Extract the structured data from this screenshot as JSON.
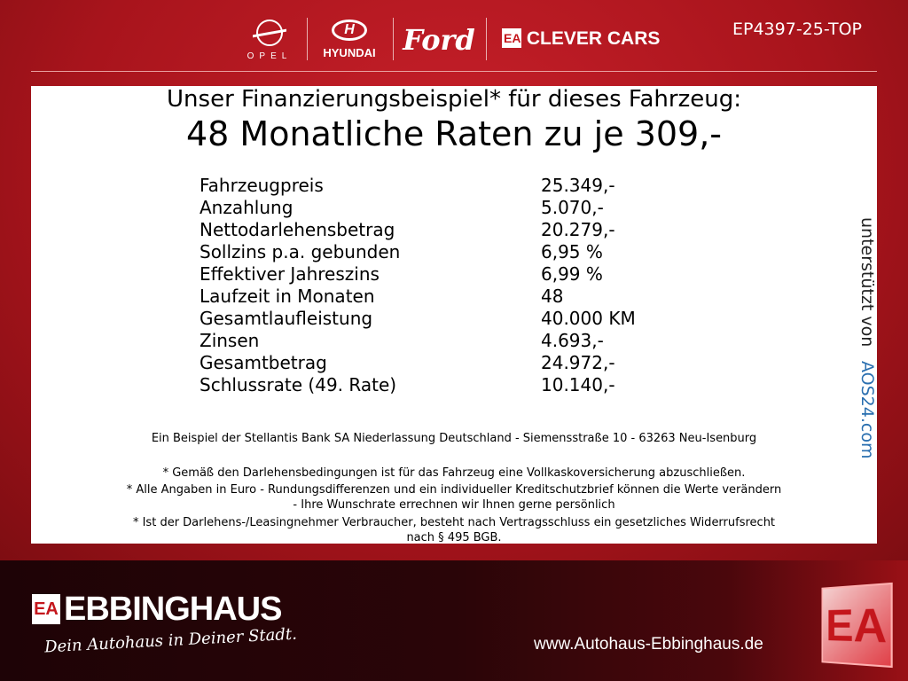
{
  "header": {
    "brands": [
      "OPEL",
      "HYUNDAI",
      "Ford",
      "CLEVER CARS"
    ],
    "reference": "EP4397-25-TOP"
  },
  "offer": {
    "title": "Unser Finanzierungsbeispiel* für dieses Fahrzeug:",
    "headline": "48 Monatliche Raten zu je 309,-",
    "rows": [
      {
        "label": "Fahrzeugpreis",
        "value": "25.349,-"
      },
      {
        "label": "Anzahlung",
        "value": "5.070,-"
      },
      {
        "label": "Nettodarlehensbetrag",
        "value": "20.279,-"
      },
      {
        "label": "Sollzins p.a. gebunden",
        "value": "6,95 %"
      },
      {
        "label": "Effektiver Jahreszins",
        "value": "6,99 %"
      },
      {
        "label": "Laufzeit in Monaten",
        "value": "48"
      },
      {
        "label": "Gesamtlaufleistung",
        "value": "40.000 KM"
      },
      {
        "label": "Zinsen",
        "value": "4.693,-"
      },
      {
        "label": "Gesamtbetrag",
        "value": "24.972,-"
      },
      {
        "label": "Schlussrate (49. Rate)",
        "value": "10.140,-"
      }
    ],
    "bank": "Ein Beispiel der Stellantis Bank SA Niederlassung Deutschland - Siemensstraße 10 - 63263 Neu-Isenburg",
    "notes": [
      "* Gemäß den Darlehensbedingungen ist für das Fahrzeug eine Vollkaskoversicherung abzuschließen.",
      "* Alle Angaben in Euro - Rundungsdifferenzen und ein individueller Kreditschutzbrief können die Werte verändern",
      "- Ihre Wunschrate errechnen wir Ihnen gerne persönlich",
      "* Ist der Darlehens-/Leasingnehmer Verbraucher, besteht nach Vertragsschluss ein gesetzliches Widerrufsrecht",
      "nach § 495 BGB."
    ],
    "supported_by": "unterstützt von",
    "supporter": "AOS24.com"
  },
  "footer": {
    "logo_mark": "EA",
    "company": "EBBINGHAUS",
    "slogan": "Dein Autohaus in Deiner Stadt.",
    "website": "www.Autohaus-Ebbinghaus.de"
  }
}
